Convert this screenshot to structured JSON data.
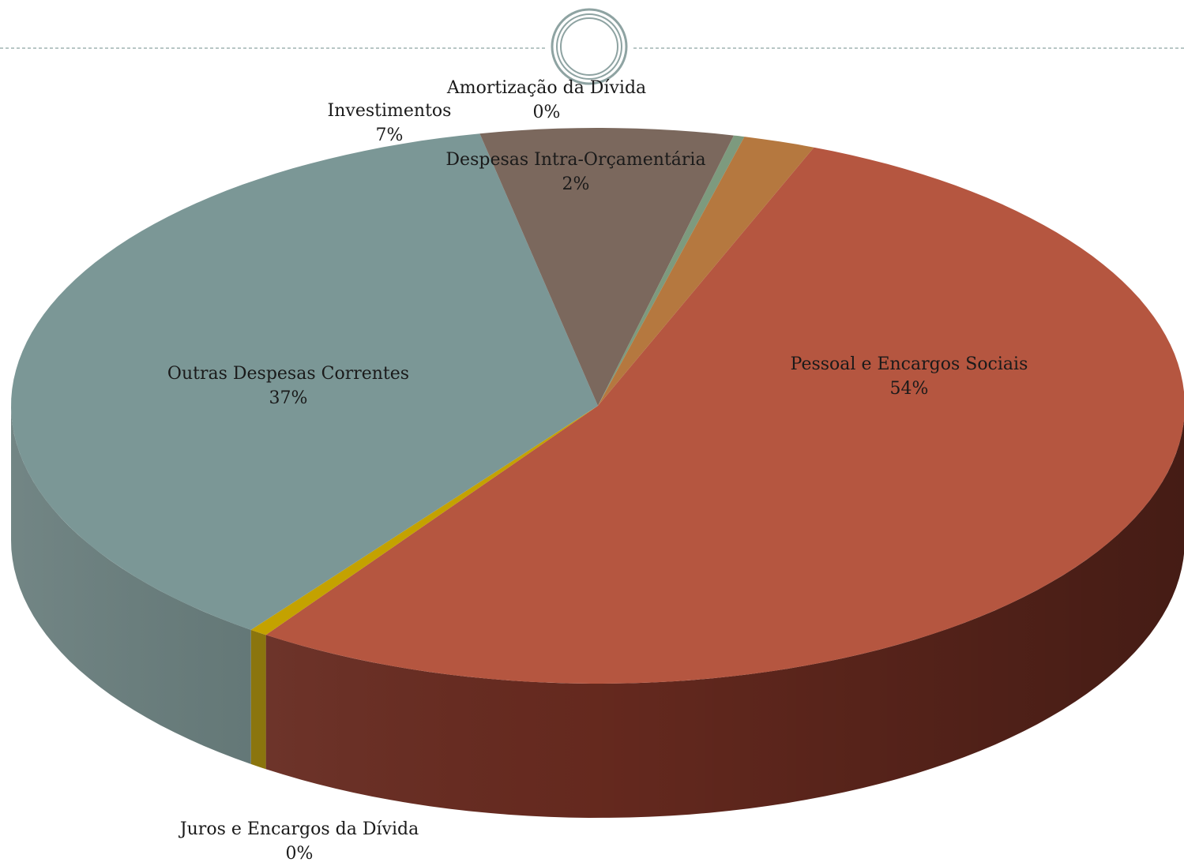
{
  "chart_data": {
    "type": "pie",
    "style": "3d",
    "categories": [
      "Pessoal e Encargos Sociais",
      "Juros e Encargos da Dívida",
      "Outras Despesas Correntes",
      "Investimentos",
      "Amortização da Dívida",
      "Despesas Intra-Orçamentária"
    ],
    "values": [
      54,
      0.5,
      37,
      7,
      0.3,
      2
    ],
    "percent_labels": [
      "54%",
      "0%",
      "37%",
      "7%",
      "0%",
      "2%"
    ],
    "colors": [
      "#b55640",
      "#c4a200",
      "#7b9796",
      "#7b685d",
      "#7d9a7e",
      "#b5783f"
    ],
    "side_colors": [
      "#6a2b20",
      "#8a7200",
      "#5f7574",
      "#5a4a41",
      "#5a725b",
      "#7d5028"
    ]
  }
}
